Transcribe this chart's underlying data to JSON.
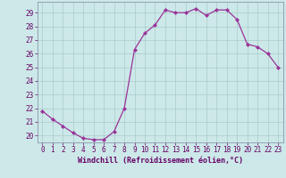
{
  "x": [
    0,
    1,
    2,
    3,
    4,
    5,
    6,
    7,
    8,
    9,
    10,
    11,
    12,
    13,
    14,
    15,
    16,
    17,
    18,
    19,
    20,
    21,
    22,
    23
  ],
  "y": [
    21.8,
    21.2,
    20.7,
    20.2,
    19.8,
    19.7,
    19.7,
    20.3,
    22.0,
    26.3,
    27.5,
    28.1,
    29.2,
    29.0,
    29.0,
    29.3,
    28.8,
    29.2,
    29.2,
    28.5,
    26.7,
    26.5,
    26.0,
    25.0
  ],
  "line_color": "#993399",
  "marker": "D",
  "markersize": 2.0,
  "linewidth": 0.9,
  "xlabel": "Windchill (Refroidissement éolien,°C)",
  "ylim": [
    19.5,
    29.8
  ],
  "yticks": [
    20,
    21,
    22,
    23,
    24,
    25,
    26,
    27,
    28,
    29
  ],
  "xlim": [
    -0.5,
    23.5
  ],
  "xticks": [
    0,
    1,
    2,
    3,
    4,
    5,
    6,
    7,
    8,
    9,
    10,
    11,
    12,
    13,
    14,
    15,
    16,
    17,
    18,
    19,
    20,
    21,
    22,
    23
  ],
  "xtick_labels": [
    "0",
    "1",
    "2",
    "3",
    "4",
    "5",
    "6",
    "7",
    "8",
    "9",
    "10",
    "11",
    "12",
    "13",
    "14",
    "15",
    "16",
    "17",
    "18",
    "19",
    "20",
    "21",
    "22",
    "23"
  ],
  "background_color": "#cce8e8",
  "grid_color": "#aacccc",
  "label_color": "#660066",
  "tick_color": "#660066",
  "xlabel_fontsize": 6.0,
  "tick_fontsize": 5.5
}
